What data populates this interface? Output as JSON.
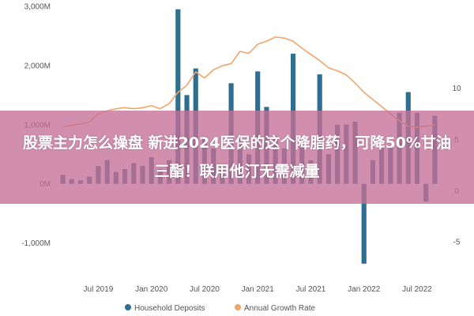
{
  "chart_data": {
    "type": "bar",
    "x": [
      "2019-03",
      "2019-04",
      "2019-05",
      "2019-06",
      "2019-07",
      "2019-08",
      "2019-09",
      "2019-10",
      "2019-11",
      "2019-12",
      "2020-01",
      "2020-02",
      "2020-03",
      "2020-04",
      "2020-05",
      "2020-06",
      "2020-07",
      "2020-08",
      "2020-09",
      "2020-10",
      "2020-11",
      "2020-12",
      "2021-01",
      "2021-02",
      "2021-03",
      "2021-04",
      "2021-05",
      "2021-06",
      "2021-07",
      "2021-08",
      "2021-09",
      "2021-10",
      "2021-11",
      "2021-12",
      "2022-01",
      "2022-02",
      "2022-03",
      "2022-04",
      "2022-05",
      "2022-06",
      "2022-07",
      "2022-08",
      "2022-09"
    ],
    "series": [
      {
        "name": "Household Deposits",
        "axis": "left",
        "color": "#2e6e8e",
        "values": [
          150,
          80,
          60,
          120,
          300,
          400,
          200,
          250,
          350,
          300,
          450,
          250,
          400,
          2950,
          1500,
          1950,
          800,
          600,
          300,
          1700,
          800,
          500,
          1900,
          1300,
          800,
          600,
          2200,
          700,
          400,
          1850,
          500,
          1000,
          1000,
          1050,
          -1350,
          400,
          600,
          650,
          1200,
          1550,
          1200,
          -300,
          1150
        ]
      },
      {
        "name": "Annual Growth Rate",
        "axis": "right",
        "color": "#f3a46b",
        "values": [
          6.2,
          6.4,
          6.5,
          6.7,
          7.5,
          7.8,
          8.0,
          8.1,
          8.0,
          8.1,
          8.3,
          8.0,
          8.5,
          9.6,
          10.3,
          11.6,
          11.0,
          11.8,
          12.2,
          12.4,
          13.6,
          13.4,
          14.3,
          14.6,
          15.0,
          14.9,
          14.6,
          13.9,
          13.3,
          12.7,
          12.0,
          11.7,
          11.3,
          10.5,
          9.6,
          8.9,
          8.2,
          7.5,
          6.8,
          6.3,
          6.2,
          6.3,
          6.4
        ]
      }
    ],
    "y_left": {
      "ylim": [
        -1500,
        3000
      ],
      "ticks": [
        -1000,
        0,
        1000,
        2000,
        3000
      ],
      "tick_labels": [
        "-1,000M",
        "0M",
        "1,000M",
        "2,000M",
        "3,000M"
      ]
    },
    "y_right": {
      "ylim": [
        -8,
        18
      ],
      "ticks": [
        -5,
        0,
        5,
        10
      ],
      "tick_labels": [
        "-5",
        "0",
        "5",
        "10"
      ]
    },
    "x_tick_labels": [
      {
        "x": "2019-07",
        "label": "Jul 2019"
      },
      {
        "x": "2020-01",
        "label": "Jan 2020"
      },
      {
        "x": "2020-07",
        "label": "Jul 2020"
      },
      {
        "x": "2021-01",
        "label": "Jan 2021"
      },
      {
        "x": "2021-07",
        "label": "Jul 2021"
      },
      {
        "x": "2022-01",
        "label": "Jan 2022"
      },
      {
        "x": "2022-07",
        "label": "Jul 2022"
      }
    ],
    "legend": [
      "Household Deposits",
      "Annual Growth Rate"
    ],
    "legend_position": "bottom",
    "grid": false
  },
  "banner": {
    "text": "股票主力怎么操盘 新进2024医保的这个降脂药，可降50%甘油三酯！联用他汀无需减量"
  }
}
